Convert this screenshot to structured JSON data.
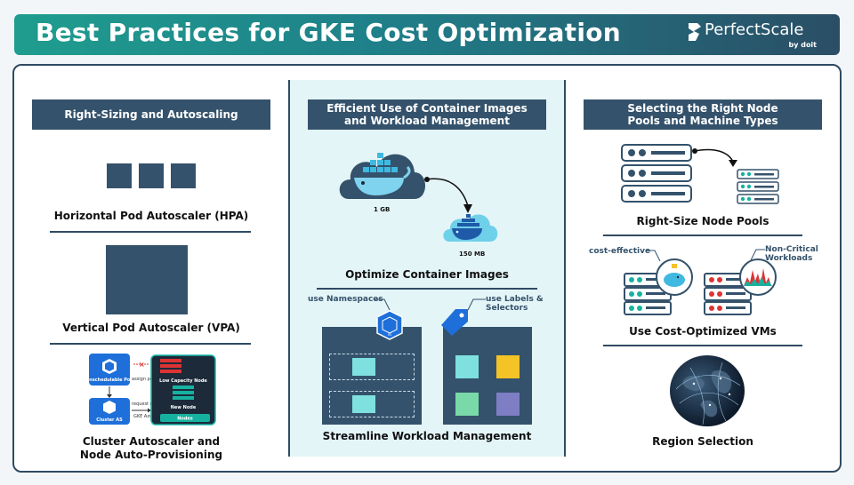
{
  "header": {
    "title": "Best Practices for GKE Cost Optimization",
    "brand_name": "PerfectScale",
    "brand_by": "by doit"
  },
  "colors": {
    "header_start": "#1f9d8e",
    "header_end": "#2a4e66",
    "section_header": "#34526b",
    "middle_panel": "#e4f5f7"
  },
  "left": {
    "header": "Right-Sizing and Autoscaling",
    "hpa_label": "Horizontal Pod Autoscaler (HPA)",
    "vpa_label": "Vertical Pod Autoscaler (VPA)",
    "ca_label_line1": "Cluster Autoscaler and",
    "ca_label_line2": "Node Auto-Provisioning",
    "ca_diagram": {
      "unschedulable_pod": "Unschedulable Pod",
      "cluster_as": "Cluster AS",
      "assign_pod": "assign pod",
      "request_node": "request node",
      "gke_azure": "GKE Azure",
      "low_capacity_node": "Low Capacity Node",
      "new_node": "New Node",
      "nodes": "Nodes"
    }
  },
  "middle": {
    "header_line1": "Efficient Use of Container Images",
    "header_line2": "and Workload Management",
    "image_size_large": "1 GB",
    "image_size_small": "150 MB",
    "optimize_label": "Optimize Container Images",
    "namespaces_callout": "use Namespaces",
    "labels_callout_line1": "use Labels &",
    "labels_callout_line2": "Selectors",
    "ns_badge": "ns",
    "streamline_label": "Streamline Workload Management"
  },
  "right": {
    "header_line1": "Selecting the Right Node",
    "header_line2": "Pools and Machine Types",
    "rightsize_label": "Right-Size Node Pools",
    "cost_effective_callout": "cost-effective",
    "noncritical_line1": "Non-Critical",
    "noncritical_line2": "Workloads",
    "vm_label": "Use Cost-Optimized VMs",
    "region_label": "Region Selection"
  }
}
